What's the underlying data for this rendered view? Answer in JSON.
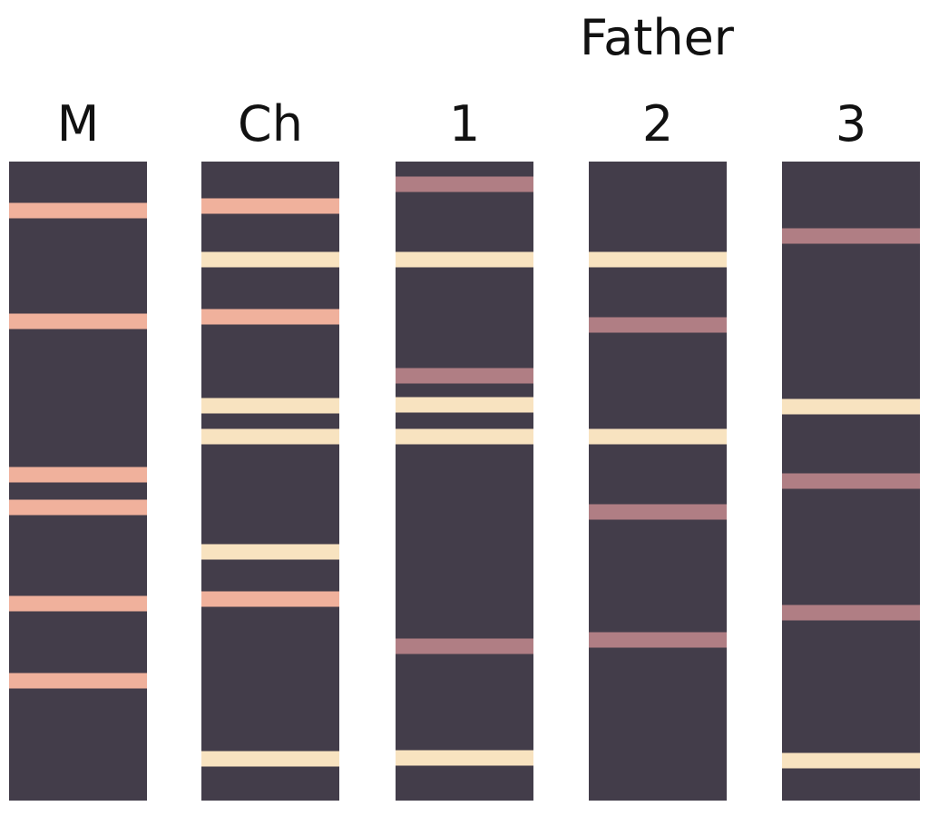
{
  "lanes": [
    {
      "label": "M"
    },
    {
      "label": "Ch"
    }
  ],
  "father": {
    "title": "Father",
    "lanes": [
      {
        "label": "1"
      },
      {
        "label": "2"
      },
      {
        "label": "3"
      }
    ]
  }
}
